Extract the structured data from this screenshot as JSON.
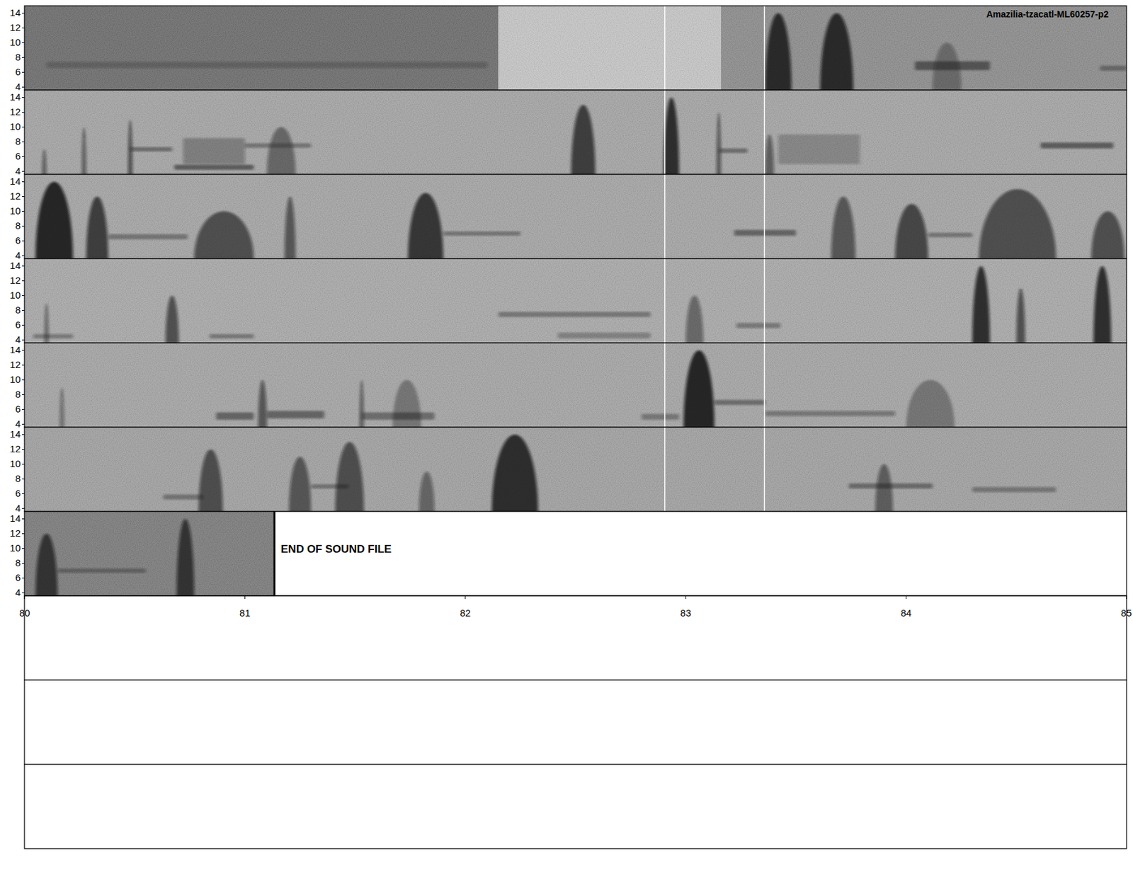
{
  "chart_data": {
    "type": "spectrogram",
    "title": "Amazilia-tzacatl-ML60257-p2",
    "ylim": [
      3.6,
      15
    ],
    "yticks": [
      4,
      6,
      8,
      10,
      12,
      14
    ],
    "xlim": [
      80,
      85
    ],
    "xticks": [
      80,
      81,
      82,
      83,
      84,
      85
    ],
    "empty_rows": 3,
    "rows": [
      {
        "xlim": [
          50,
          55
        ],
        "background": [
          [
            50,
            52.15,
            0.35
          ],
          [
            52.15,
            53.16,
            0.78
          ],
          [
            53.16,
            55,
            0.5
          ]
        ],
        "markers": [
          52.905,
          53.357
        ],
        "events": [
          [
            50.1,
            52.1,
            6.6,
            7.4,
            0.25
          ],
          [
            53.36,
            53.48,
            4,
            14,
            0.8
          ],
          [
            53.61,
            53.76,
            4,
            14,
            0.8
          ],
          [
            54.04,
            54.38,
            6.3,
            7.5,
            0.55
          ],
          [
            54.12,
            54.25,
            4,
            10,
            0.35
          ],
          [
            54.88,
            55,
            6.2,
            6.9,
            0.4
          ]
        ]
      },
      {
        "xlim": [
          55,
          60
        ],
        "background": [
          [
            55,
            60,
            0.62
          ]
        ],
        "markers": [
          57.905,
          58.357
        ],
        "events": [
          [
            55.08,
            55.1,
            4,
            7,
            0.5
          ],
          [
            55.26,
            55.28,
            4,
            10,
            0.5
          ],
          [
            55.47,
            55.49,
            4,
            11,
            0.6
          ],
          [
            55.48,
            55.67,
            6.7,
            7.3,
            0.45
          ],
          [
            55.68,
            56.04,
            4.2,
            4.9,
            0.55
          ],
          [
            55.72,
            56.0,
            5,
            8.5,
            0.3
          ],
          [
            56.1,
            56.23,
            4,
            10,
            0.45
          ],
          [
            56.0,
            56.3,
            7.2,
            7.8,
            0.4
          ],
          [
            57.48,
            57.59,
            4,
            13,
            0.7
          ],
          [
            57.9,
            57.97,
            4,
            14,
            0.8
          ],
          [
            58.14,
            58.16,
            4,
            12,
            0.55
          ],
          [
            58.15,
            58.28,
            6.5,
            7.1,
            0.45
          ],
          [
            58.36,
            58.4,
            4,
            9,
            0.5
          ],
          [
            58.42,
            58.79,
            5,
            9,
            0.25
          ],
          [
            59.61,
            59.94,
            7.1,
            7.9,
            0.55
          ]
        ]
      },
      {
        "xlim": [
          60,
          65
        ],
        "background": [
          [
            60,
            65,
            0.62
          ]
        ],
        "markers": [
          62.905,
          63.357
        ],
        "events": [
          [
            60.05,
            60.22,
            4,
            14,
            0.85
          ],
          [
            60.28,
            60.38,
            4,
            12,
            0.7
          ],
          [
            60.38,
            60.74,
            6.2,
            6.9,
            0.4
          ],
          [
            60.77,
            61.04,
            4,
            10,
            0.6
          ],
          [
            61.18,
            61.23,
            4,
            12,
            0.55
          ],
          [
            61.74,
            61.9,
            4,
            12.5,
            0.75
          ],
          [
            61.9,
            62.25,
            6.7,
            7.3,
            0.4
          ],
          [
            63.22,
            63.5,
            6.7,
            7.5,
            0.5
          ],
          [
            63.66,
            63.77,
            4,
            12,
            0.55
          ],
          [
            63.95,
            64.1,
            4,
            11,
            0.65
          ],
          [
            64.1,
            64.3,
            6.5,
            7.1,
            0.4
          ],
          [
            64.33,
            64.68,
            4,
            13,
            0.6
          ],
          [
            64.84,
            64.99,
            4,
            10,
            0.6
          ]
        ]
      },
      {
        "xlim": [
          65,
          70
        ],
        "background": [
          [
            65,
            70,
            0.64
          ]
        ],
        "markers": [
          67.905,
          68.357
        ],
        "events": [
          [
            65.04,
            65.22,
            4.2,
            4.8,
            0.35
          ],
          [
            65.09,
            65.11,
            4,
            9,
            0.45
          ],
          [
            65.64,
            65.7,
            4,
            10,
            0.6
          ],
          [
            65.84,
            66.04,
            4.2,
            4.8,
            0.4
          ],
          [
            67.15,
            67.84,
            7.1,
            7.8,
            0.4
          ],
          [
            67.42,
            67.84,
            4.2,
            5,
            0.3
          ],
          [
            68.0,
            68.08,
            4,
            10,
            0.45
          ],
          [
            68.23,
            68.43,
            5.6,
            6.3,
            0.35
          ],
          [
            69.3,
            69.38,
            4,
            14,
            0.8
          ],
          [
            69.5,
            69.54,
            4,
            11,
            0.6
          ],
          [
            69.85,
            69.93,
            4,
            14,
            0.8
          ]
        ]
      },
      {
        "xlim": [
          70,
          75
        ],
        "background": [
          [
            70,
            75,
            0.62
          ]
        ],
        "markers": [
          72.905,
          73.357
        ],
        "events": [
          [
            70.16,
            70.18,
            4,
            9,
            0.4
          ],
          [
            70.87,
            71.04,
            4.6,
            5.6,
            0.5
          ],
          [
            71.06,
            71.1,
            4,
            10,
            0.55
          ],
          [
            71.1,
            71.36,
            4.8,
            5.8,
            0.5
          ],
          [
            71.52,
            71.54,
            4,
            10,
            0.5
          ],
          [
            71.53,
            71.86,
            4.6,
            5.6,
            0.45
          ],
          [
            71.67,
            71.8,
            4,
            10,
            0.3
          ],
          [
            72.8,
            72.97,
            4.6,
            5.4,
            0.35
          ],
          [
            72.99,
            73.13,
            4,
            14,
            0.85
          ],
          [
            73.13,
            73.36,
            6.6,
            7.3,
            0.45
          ],
          [
            73.36,
            73.95,
            5.1,
            5.8,
            0.35
          ],
          [
            74.0,
            74.22,
            4,
            10,
            0.3
          ]
        ]
      },
      {
        "xlim": [
          75,
          80
        ],
        "background": [
          [
            75,
            80,
            0.6
          ]
        ],
        "markers": [
          77.905,
          78.357
        ],
        "events": [
          [
            75.63,
            75.81,
            5.2,
            5.9,
            0.4
          ],
          [
            75.79,
            75.9,
            4,
            12,
            0.6
          ],
          [
            76.2,
            76.3,
            4,
            11,
            0.55
          ],
          [
            76.3,
            76.47,
            6.7,
            7.3,
            0.4
          ],
          [
            76.41,
            76.54,
            4,
            13,
            0.6
          ],
          [
            76.79,
            76.86,
            4,
            9,
            0.45
          ],
          [
            77.12,
            77.33,
            4,
            14,
            0.8
          ],
          [
            78.74,
            79.12,
            6.7,
            7.4,
            0.45
          ],
          [
            78.86,
            78.94,
            4,
            10,
            0.5
          ],
          [
            79.3,
            79.68,
            6.2,
            6.9,
            0.35
          ]
        ]
      },
      {
        "xlim": [
          80,
          85
        ],
        "background": [
          [
            80,
            81.134,
            0.42
          ]
        ],
        "markers": [],
        "events": [
          [
            80.05,
            80.15,
            4,
            12,
            0.7
          ],
          [
            80.15,
            80.55,
            6.7,
            7.3,
            0.35
          ],
          [
            80.69,
            80.77,
            4,
            14,
            0.7
          ]
        ],
        "end_of_file": {
          "t": 81.134,
          "label": "END OF SOUND FILE"
        }
      }
    ]
  }
}
